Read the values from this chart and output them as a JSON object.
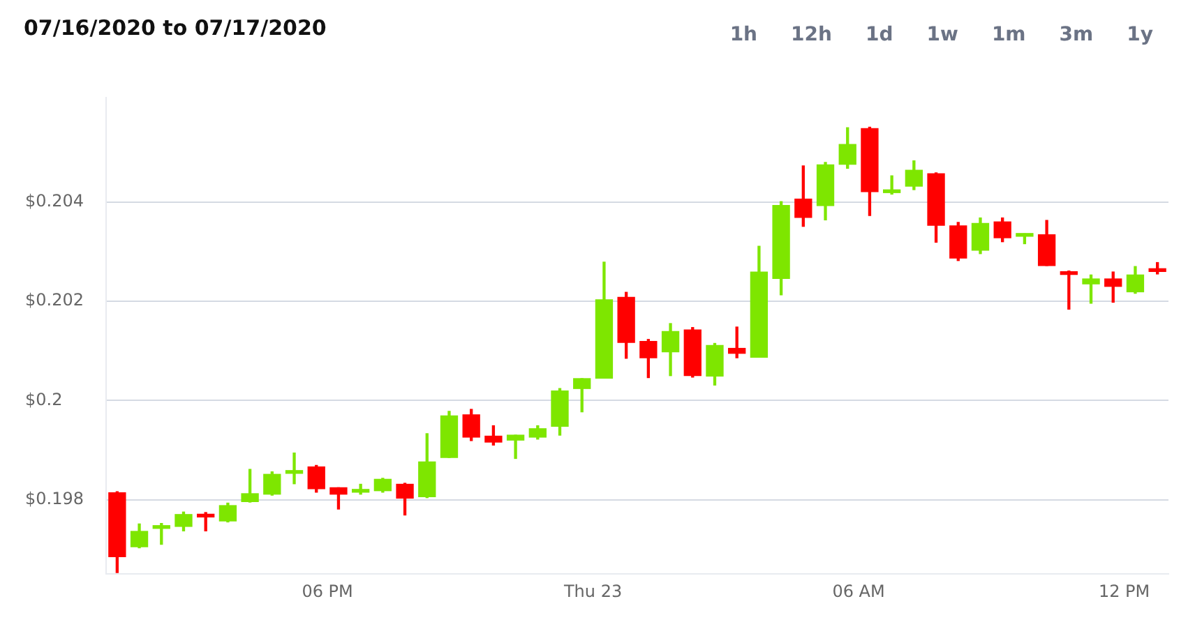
{
  "chart_data": {
    "type": "candlestick",
    "title": "07/16/2020 to 07/17/2020",
    "annotations": [
      "1h",
      "12h",
      "1d",
      "1w",
      "1m",
      "3m",
      "1y"
    ],
    "x": [
      "2020-07-22T13:15",
      "2020-07-22T13:45",
      "2020-07-22T14:15",
      "2020-07-22T14:45",
      "2020-07-22T15:15",
      "2020-07-22T15:45",
      "2020-07-22T16:15",
      "2020-07-22T16:45",
      "2020-07-22T17:15",
      "2020-07-22T17:45",
      "2020-07-22T18:15",
      "2020-07-22T18:45",
      "2020-07-22T19:15",
      "2020-07-22T19:45",
      "2020-07-22T20:15",
      "2020-07-22T20:45",
      "2020-07-22T21:15",
      "2020-07-22T21:45",
      "2020-07-22T22:15",
      "2020-07-22T22:45",
      "2020-07-22T23:15",
      "2020-07-22T23:45",
      "2020-07-23T00:15",
      "2020-07-23T00:45",
      "2020-07-23T01:15",
      "2020-07-23T01:45",
      "2020-07-23T02:15",
      "2020-07-23T02:45",
      "2020-07-23T03:15",
      "2020-07-23T03:45",
      "2020-07-23T04:15",
      "2020-07-23T04:45",
      "2020-07-23T05:15",
      "2020-07-23T05:45",
      "2020-07-23T06:15",
      "2020-07-23T06:45",
      "2020-07-23T07:15",
      "2020-07-23T07:45",
      "2020-07-23T08:15",
      "2020-07-23T08:45",
      "2020-07-23T09:15",
      "2020-07-23T09:45",
      "2020-07-23T10:15",
      "2020-07-23T10:45",
      "2020-07-23T11:15",
      "2020-07-23T11:45",
      "2020-07-23T12:15",
      "2020-07-23T12:45"
    ],
    "ohlc": [
      [
        0.19814,
        0.19816,
        0.19653,
        0.19685
      ],
      [
        0.19705,
        0.19751,
        0.19703,
        0.19736
      ],
      [
        0.19742,
        0.19752,
        0.1971,
        0.19745
      ],
      [
        0.19746,
        0.19775,
        0.19737,
        0.1977
      ],
      [
        0.19769,
        0.19774,
        0.19737,
        0.19765
      ],
      [
        0.19757,
        0.19793,
        0.19755,
        0.19788
      ],
      [
        0.19796,
        0.19861,
        0.19795,
        0.19812
      ],
      [
        0.19811,
        0.19856,
        0.19809,
        0.19851
      ],
      [
        0.19853,
        0.19894,
        0.19832,
        0.19856
      ],
      [
        0.19866,
        0.19869,
        0.19815,
        0.19822
      ],
      [
        0.19824,
        0.19824,
        0.19781,
        0.19811
      ],
      [
        0.19815,
        0.19831,
        0.19811,
        0.19819
      ],
      [
        0.19818,
        0.19843,
        0.19815,
        0.19841
      ],
      [
        0.19831,
        0.19833,
        0.19769,
        0.19803
      ],
      [
        0.19806,
        0.19933,
        0.19804,
        0.19876
      ],
      [
        0.19885,
        0.19978,
        0.19885,
        0.19969
      ],
      [
        0.19971,
        0.19982,
        0.19919,
        0.19926
      ],
      [
        0.19928,
        0.19949,
        0.1991,
        0.19916
      ],
      [
        0.1992,
        0.1993,
        0.19883,
        0.1993
      ],
      [
        0.19926,
        0.19949,
        0.19922,
        0.19943
      ],
      [
        0.19948,
        0.20024,
        0.1993,
        0.20019
      ],
      [
        0.20024,
        0.20044,
        0.19977,
        0.20044
      ],
      [
        0.20045,
        0.20279,
        0.20045,
        0.20203
      ],
      [
        0.20208,
        0.20218,
        0.20085,
        0.20117
      ],
      [
        0.20119,
        0.20123,
        0.20046,
        0.20086
      ],
      [
        0.20098,
        0.20155,
        0.2005,
        0.20139
      ],
      [
        0.20142,
        0.20147,
        0.20047,
        0.2005
      ],
      [
        0.20049,
        0.20115,
        0.20031,
        0.20111
      ],
      [
        0.20105,
        0.20148,
        0.20086,
        0.20095
      ],
      [
        0.20087,
        0.20311,
        0.20087,
        0.20259
      ],
      [
        0.20246,
        0.20401,
        0.20213,
        0.20393
      ],
      [
        0.20406,
        0.20473,
        0.20351,
        0.20369
      ],
      [
        0.20393,
        0.2048,
        0.20364,
        0.20475
      ],
      [
        0.20476,
        0.2055,
        0.20468,
        0.20516
      ],
      [
        0.20548,
        0.20551,
        0.20373,
        0.20421
      ],
      [
        0.20419,
        0.20453,
        0.20416,
        0.20423
      ],
      [
        0.20432,
        0.20483,
        0.20425,
        0.20464
      ],
      [
        0.20457,
        0.20459,
        0.20319,
        0.20353
      ],
      [
        0.20352,
        0.20359,
        0.20282,
        0.20287
      ],
      [
        0.20303,
        0.20368,
        0.20296,
        0.20357
      ],
      [
        0.2036,
        0.20368,
        0.2032,
        0.20328
      ],
      [
        0.20331,
        0.20336,
        0.20316,
        0.20336
      ],
      [
        0.20334,
        0.20363,
        0.20272,
        0.20272
      ],
      [
        0.20259,
        0.20261,
        0.20184,
        0.20254
      ],
      [
        0.20235,
        0.20253,
        0.20196,
        0.20245
      ],
      [
        0.20245,
        0.20259,
        0.20198,
        0.2023
      ],
      [
        0.20219,
        0.2027,
        0.20216,
        0.20253
      ],
      [
        0.20263,
        0.20278,
        0.20255,
        0.2026
      ]
    ],
    "colors": [
      "#ff0000",
      "#7ee600",
      "#7ee600",
      "#7ee600",
      "#ff0000",
      "#7ee600",
      "#7ee600",
      "#7ee600",
      "#7ee600",
      "#ff0000",
      "#ff0000",
      "#7ee600",
      "#7ee600",
      "#ff0000",
      "#7ee600",
      "#7ee600",
      "#ff0000",
      "#ff0000",
      "#7ee600",
      "#7ee600",
      "#7ee600",
      "#7ee600",
      "#7ee600",
      "#ff0000",
      "#ff0000",
      "#7ee600",
      "#ff0000",
      "#7ee600",
      "#ff0000",
      "#7ee600",
      "#7ee600",
      "#ff0000",
      "#7ee600",
      "#7ee600",
      "#ff0000",
      "#7ee600",
      "#7ee600",
      "#ff0000",
      "#ff0000",
      "#7ee600",
      "#ff0000",
      "#7ee600",
      "#ff0000",
      "#ff0000",
      "#7ee600",
      "#ff0000",
      "#7ee600",
      "#ff0000"
    ],
    "xlim": [
      "2020-07-22T13:00",
      "2020-07-23T13:00"
    ],
    "xticks": [
      {
        "value": "2020-07-22T18:00",
        "label": "06 PM"
      },
      {
        "value": "2020-07-23T00:00",
        "label": "Thu 23"
      },
      {
        "value": "2020-07-23T06:00",
        "label": "06 AM"
      },
      {
        "value": "2020-07-23T12:00",
        "label": "12 PM"
      }
    ],
    "ylim": [
      0.1965,
      0.2061
    ],
    "yticks": [
      {
        "value": 0.198,
        "label": "$0.198"
      },
      {
        "value": 0.2,
        "label": "$0.2"
      },
      {
        "value": 0.202,
        "label": "$0.202"
      },
      {
        "value": 0.204,
        "label": "$0.204"
      }
    ],
    "grid": "y",
    "legend": false
  }
}
